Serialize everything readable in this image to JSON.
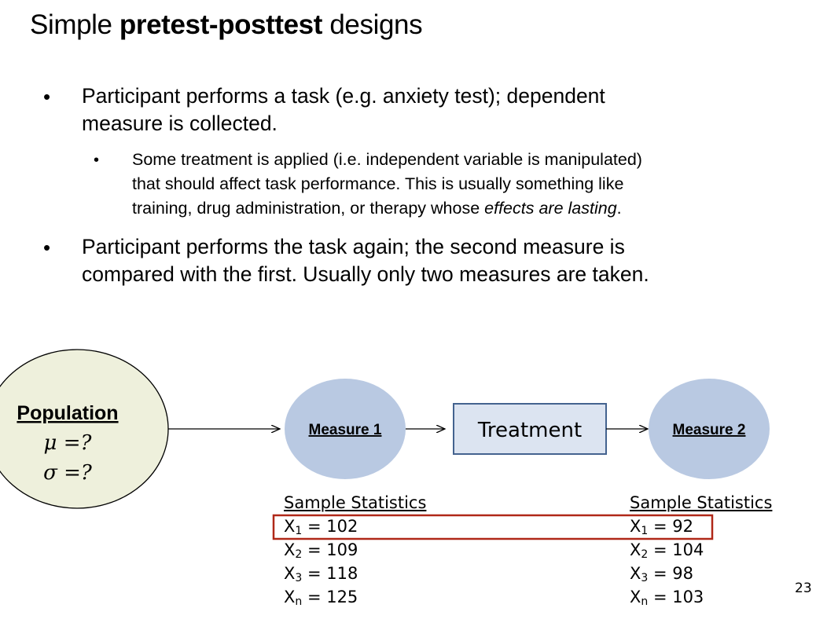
{
  "title": {
    "prefix": "Simple ",
    "bold": "pretest-posttest",
    "suffix": " designs"
  },
  "bullets": {
    "b1_line1": "Participant performs a task (e.g. anxiety test); dependent",
    "b1_line2": "measure is collected.",
    "sub_line1": "Some treatment is applied (i.e. independent variable is manipulated)",
    "sub_line2": "that should affect task performance. This is usually something like",
    "sub_line3_start": "training, drug administration, or therapy whose ",
    "sub_line3_italic": "effects are lasting",
    "sub_line3_end": ".",
    "b2_line1": "Participant performs the task again; the second measure is",
    "b2_line2": "compared with the first. Usually only two measures are taken."
  },
  "diagram": {
    "population_label": "Population",
    "mu_line": "μ =?",
    "sigma_line": "σ =?",
    "measure1_label": "Measure 1",
    "treatment_label": "Treatment",
    "measure2_label": "Measure 2",
    "colors": {
      "population_fill": "#eef0dc",
      "measure_fill": "#b9c9e2",
      "treatment_fill": "#dce4f1",
      "treatment_border": "#44638f",
      "highlight_border": "#b02818"
    }
  },
  "stats": {
    "left": {
      "header": "Sample Statistics",
      "rows": [
        {
          "sym": "X",
          "sub": "1",
          "val": " = 102"
        },
        {
          "sym": "X",
          "sub": "2",
          "val": " = 109"
        },
        {
          "sym": "X",
          "sub": "3",
          "val": " = 118"
        },
        {
          "sym": "X",
          "sub": "n",
          "val": " = 125"
        }
      ]
    },
    "right": {
      "header": "Sample Statistics",
      "rows": [
        {
          "sym": "X",
          "sub": "1",
          "val": " = 92"
        },
        {
          "sym": "X",
          "sub": "2",
          "val": " = 104"
        },
        {
          "sym": "X",
          "sub": "3",
          "val": " = 98"
        },
        {
          "sym": "X",
          "sub": "n",
          "val": " = 103"
        }
      ]
    }
  },
  "page_number": "23"
}
